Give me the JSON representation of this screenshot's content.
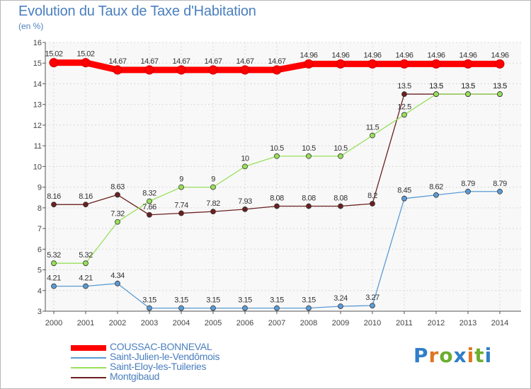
{
  "header": {
    "title": "Evolution du Taux de Taxe d'Habitation",
    "unit": "(en %)"
  },
  "logo": {
    "text": "Proxiti",
    "colors": [
      "#2f7fc9",
      "#e0761f",
      "#6cae2d",
      "#2f7fc9",
      "#e0761f",
      "#6cae2d",
      "#2f7fc9"
    ]
  },
  "chart_data": {
    "type": "line",
    "title": "Evolution du Taux de Taxe d'Habitation",
    "ylabel": "(en %)",
    "xlabel": "",
    "x": [
      "2000",
      "2001",
      "2002",
      "2003",
      "2004",
      "2005",
      "2006",
      "2007",
      "2008",
      "2009",
      "2010",
      "2011",
      "2012",
      "2013",
      "2014"
    ],
    "ylim": [
      3,
      16
    ],
    "yticks": [
      "3",
      "4",
      "5",
      "6",
      "7",
      "8",
      "9",
      "10",
      "11",
      "12",
      "13",
      "14",
      "15",
      "16"
    ],
    "grid": true,
    "legend_position": "bottom-left",
    "series": [
      {
        "name": "COUSSAC-BONNEVAL",
        "color": "#ff0000",
        "values": [
          15.02,
          15.02,
          14.67,
          14.67,
          14.67,
          14.67,
          14.67,
          14.67,
          14.96,
          14.96,
          14.96,
          14.96,
          14.96,
          14.96,
          14.96
        ],
        "labels": [
          "15.02",
          "15.02",
          "14.67",
          "14.67",
          "14.67",
          "14.67",
          "14.67",
          "14.67",
          "14.96",
          "14.96",
          "14.96",
          "14.96",
          "14.96",
          "14.96",
          "14.96"
        ]
      },
      {
        "name": "Saint-Julien-le-Vendômois",
        "color": "#5b9bd5",
        "values": [
          4.21,
          4.21,
          4.34,
          3.15,
          3.15,
          3.15,
          3.15,
          3.15,
          3.15,
          3.24,
          3.27,
          8.45,
          8.62,
          8.79,
          8.79
        ],
        "labels": [
          "4.21",
          "4.21",
          "4.34",
          "3.15",
          "3.15",
          "3.15",
          "3.15",
          "3.15",
          "3.15",
          "3.24",
          "3.27",
          "8.45",
          "8.62",
          "8.79",
          "8.79"
        ]
      },
      {
        "name": "Saint-Eloy-les-Tuileries",
        "color": "#99e05a",
        "values": [
          5.32,
          5.32,
          7.32,
          8.32,
          9,
          9,
          10,
          10.5,
          10.5,
          10.5,
          11.5,
          12.5,
          13.5,
          13.5,
          13.5
        ],
        "labels": [
          "5.32",
          "5.32",
          "7.32",
          "8.32",
          "9",
          "9",
          "10",
          "10.5",
          "10.5",
          "10.5",
          "11.5",
          "12.5",
          "13.5",
          "13.5",
          "13.5"
        ]
      },
      {
        "name": "Montgibaud",
        "color": "#6b1f1f",
        "values": [
          8.16,
          8.16,
          8.63,
          7.66,
          7.74,
          7.82,
          7.93,
          8.08,
          8.08,
          8.08,
          8.2,
          13.5,
          13.5,
          13.5,
          13.5
        ],
        "labels": [
          "8.16",
          "8.16",
          "8.63",
          "7.66",
          "7.74",
          "7.82",
          "7.93",
          "8.08",
          "8.08",
          "8.08",
          "8.2",
          "13.5",
          "13.5",
          "13.5",
          "13.5"
        ]
      }
    ]
  }
}
